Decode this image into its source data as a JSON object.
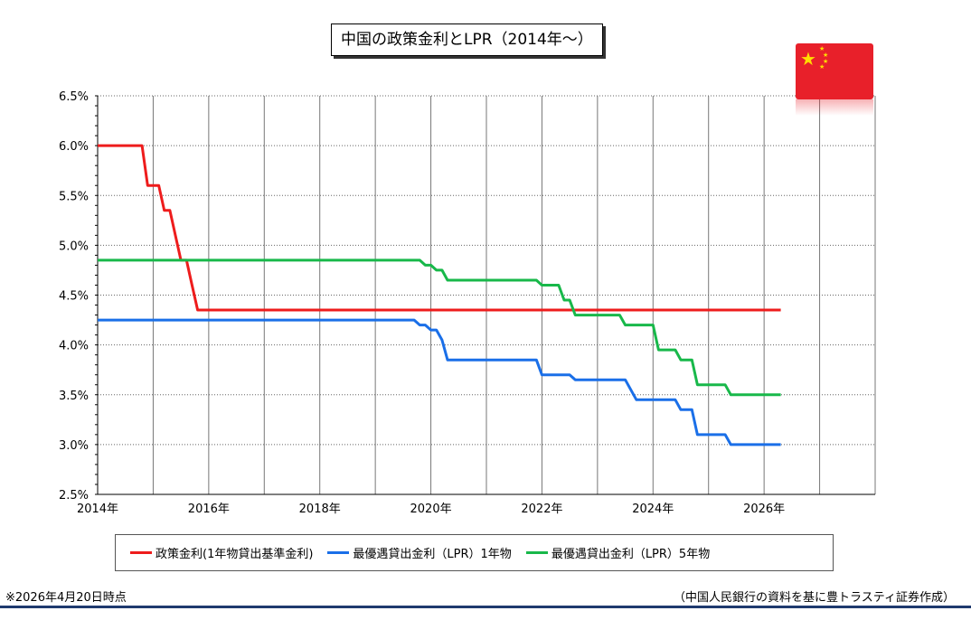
{
  "title": "中国の政策金利とLPR（2014年〜）",
  "note": "※2026年4月20日時点",
  "source": "（中国人民銀行の資料を基に豊トラスティ証券作成）",
  "colors": {
    "policy": "#ee1c1c",
    "lpr1": "#1a6fe8",
    "lpr5": "#18b84a",
    "flag": "#e8202a",
    "star": "#ffde00",
    "rule": "#1f3a6e"
  },
  "icons": {
    "flag": "china-flag-icon"
  },
  "chart_data": {
    "type": "line",
    "title": "中国の政策金利とLPR（2014年〜）",
    "xlim": [
      2014,
      2028
    ],
    "ylim": [
      2.5,
      6.5
    ],
    "x_ticks": [
      2014,
      2016,
      2018,
      2020,
      2022,
      2024,
      2026
    ],
    "x_tick_labels": [
      "2014年",
      "2016年",
      "2018年",
      "2020年",
      "2022年",
      "2024年",
      "2026年"
    ],
    "y_ticks": [
      2.5,
      3.0,
      3.5,
      4.0,
      4.5,
      5.0,
      5.5,
      6.0,
      6.5
    ],
    "y_tick_labels": [
      "2.5%",
      "3.0%",
      "3.5%",
      "4.0%",
      "4.5%",
      "5.0%",
      "5.5%",
      "6.0%",
      "6.5%"
    ],
    "grid": true,
    "legend_position": "bottom",
    "series": [
      {
        "name": "政策金利(1年物貸出基準金利)",
        "color": "#ee1c1c",
        "x": [
          2014.0,
          2014.8,
          2014.9,
          2015.1,
          2015.2,
          2015.3,
          2015.4,
          2015.5,
          2015.6,
          2015.7,
          2015.8,
          2026.3
        ],
        "y": [
          6.0,
          6.0,
          5.6,
          5.6,
          5.35,
          5.35,
          5.1,
          4.85,
          4.85,
          4.6,
          4.35,
          4.35
        ]
      },
      {
        "name": "最優遇貸出金利（LPR）1年物",
        "color": "#1a6fe8",
        "x": [
          2014.0,
          2019.7,
          2019.8,
          2019.9,
          2020.0,
          2020.1,
          2020.2,
          2020.3,
          2021.9,
          2022.0,
          2022.5,
          2022.6,
          2023.5,
          2023.6,
          2023.7,
          2024.4,
          2024.5,
          2024.7,
          2024.8,
          2025.3,
          2025.4,
          2026.3
        ],
        "y": [
          4.25,
          4.25,
          4.2,
          4.2,
          4.15,
          4.15,
          4.05,
          3.85,
          3.85,
          3.7,
          3.7,
          3.65,
          3.65,
          3.55,
          3.45,
          3.45,
          3.35,
          3.35,
          3.1,
          3.1,
          3.0,
          3.0
        ]
      },
      {
        "name": "最優遇貸出金利（LPR）5年物",
        "color": "#18b84a",
        "x": [
          2014.0,
          2019.8,
          2019.9,
          2020.0,
          2020.1,
          2020.2,
          2020.3,
          2021.9,
          2022.0,
          2022.3,
          2022.4,
          2022.5,
          2022.6,
          2023.4,
          2023.5,
          2024.0,
          2024.1,
          2024.4,
          2024.5,
          2024.7,
          2024.8,
          2025.3,
          2025.4,
          2026.3
        ],
        "y": [
          4.85,
          4.85,
          4.8,
          4.8,
          4.75,
          4.75,
          4.65,
          4.65,
          4.6,
          4.6,
          4.45,
          4.45,
          4.3,
          4.3,
          4.2,
          4.2,
          3.95,
          3.95,
          3.85,
          3.85,
          3.6,
          3.6,
          3.5,
          3.5
        ]
      }
    ]
  }
}
